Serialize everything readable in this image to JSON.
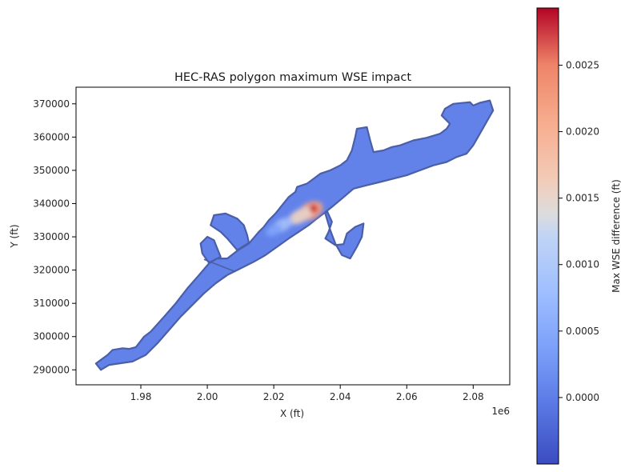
{
  "chart_data": {
    "type": "heatmap",
    "title": "HEC-RAS polygon maximum WSE impact",
    "xlabel": "X (ft)",
    "ylabel": "Y (ft)",
    "x_offset_label": "1e6",
    "xlim": [
      1.9605,
      2.091
    ],
    "ylim": [
      285500,
      375000
    ],
    "x_ticks": [
      1.98,
      2.0,
      2.02,
      2.04,
      2.06,
      2.08
    ],
    "x_tick_labels": [
      "1.98",
      "2.00",
      "2.02",
      "2.04",
      "2.06",
      "2.08"
    ],
    "y_ticks": [
      290000,
      300000,
      310000,
      320000,
      330000,
      340000,
      350000,
      360000,
      370000
    ],
    "y_tick_labels": [
      "290000",
      "300000",
      "310000",
      "320000",
      "330000",
      "340000",
      "350000",
      "360000",
      "370000"
    ],
    "colorbar": {
      "label": "Max WSE difference (ft)",
      "colormap": "coolwarm",
      "range": [
        -0.0005,
        0.00293
      ],
      "ticks": [
        0.0,
        0.0005,
        0.001,
        0.0015,
        0.002,
        0.0025
      ],
      "tick_labels": [
        "0.0000",
        "0.0005",
        "0.0010",
        "0.0015",
        "0.0020",
        "0.0025"
      ]
    },
    "domain_color": "#6282ea",
    "outline_color": "#4a5fa8",
    "boundary": [
      [
        1.9665,
        291900
      ],
      [
        1.97,
        294500
      ],
      [
        1.9715,
        296000
      ],
      [
        1.9745,
        296500
      ],
      [
        1.9765,
        296300
      ],
      [
        1.9785,
        296800
      ],
      [
        1.981,
        300000
      ],
      [
        1.983,
        301500
      ],
      [
        1.987,
        306000
      ],
      [
        1.9905,
        310000
      ],
      [
        1.994,
        314500
      ],
      [
        1.9975,
        318500
      ],
      [
        2.0005,
        322000
      ],
      [
        2.003,
        323500
      ],
      [
        2.006,
        323500
      ],
      [
        2.009,
        325800
      ],
      [
        2.0125,
        328000
      ],
      [
        2.0155,
        331500
      ],
      [
        2.017,
        333000
      ],
      [
        2.0185,
        335000
      ],
      [
        2.0205,
        337000
      ],
      [
        2.0225,
        339500
      ],
      [
        2.0245,
        342000
      ],
      [
        2.0265,
        343500
      ],
      [
        2.027,
        345000
      ],
      [
        2.03,
        346000
      ],
      [
        2.034,
        349000
      ],
      [
        2.037,
        350000
      ],
      [
        2.04,
        351500
      ],
      [
        2.042,
        353000
      ],
      [
        2.0435,
        356000
      ],
      [
        2.0445,
        360000
      ],
      [
        2.045,
        362500
      ],
      [
        2.048,
        363000
      ],
      [
        2.049,
        359000
      ],
      [
        2.05,
        355500
      ],
      [
        2.053,
        356000
      ],
      [
        2.0555,
        357000
      ],
      [
        2.058,
        357500
      ],
      [
        2.062,
        359000
      ],
      [
        2.066,
        359800
      ],
      [
        2.07,
        361000
      ],
      [
        2.072,
        362500
      ],
      [
        2.073,
        364000
      ],
      [
        2.0705,
        366500
      ],
      [
        2.0715,
        368500
      ],
      [
        2.074,
        370000
      ],
      [
        2.079,
        370500
      ],
      [
        2.08,
        369500
      ],
      [
        2.082,
        370300
      ],
      [
        2.085,
        371000
      ],
      [
        2.086,
        368000
      ],
      [
        2.084,
        364500
      ],
      [
        2.082,
        361000
      ],
      [
        2.08,
        357500
      ],
      [
        2.078,
        355000
      ],
      [
        2.075,
        354000
      ],
      [
        2.072,
        352500
      ],
      [
        2.068,
        351500
      ],
      [
        2.064,
        350000
      ],
      [
        2.06,
        348500
      ],
      [
        2.056,
        347500
      ],
      [
        2.052,
        346500
      ],
      [
        2.048,
        345500
      ],
      [
        2.044,
        344500
      ],
      [
        2.0405,
        341500
      ],
      [
        2.0375,
        339000
      ],
      [
        2.035,
        337000
      ],
      [
        2.033,
        335500
      ],
      [
        2.0305,
        333500
      ],
      [
        2.0275,
        331500
      ],
      [
        2.0245,
        329500
      ],
      [
        2.021,
        327000
      ],
      [
        2.0175,
        324500
      ],
      [
        2.014,
        322500
      ],
      [
        2.01,
        320500
      ],
      [
        2.006,
        318500
      ],
      [
        2.0025,
        316000
      ],
      [
        1.999,
        313000
      ],
      [
        1.996,
        310000
      ],
      [
        1.992,
        306000
      ],
      [
        1.9885,
        302000
      ],
      [
        1.985,
        298000
      ],
      [
        1.9815,
        294500
      ],
      [
        1.9775,
        292500
      ],
      [
        1.974,
        292000
      ],
      [
        1.9705,
        291500
      ],
      [
        1.968,
        290000
      ]
    ],
    "tributaries": [
      [
        [
          2.009,
          326000
        ],
        [
          2.006,
          329500
        ],
        [
          2.004,
          331500
        ],
        [
          2.001,
          333500
        ],
        [
          2.002,
          336500
        ],
        [
          2.0055,
          337000
        ],
        [
          2.009,
          335500
        ],
        [
          2.011,
          333500
        ],
        [
          2.012,
          330500
        ],
        [
          2.0125,
          328200
        ]
      ],
      [
        [
          2.0005,
          322200
        ],
        [
          1.9985,
          325000
        ],
        [
          1.998,
          328000
        ],
        [
          2.0,
          330000
        ],
        [
          2.002,
          329000
        ],
        [
          2.003,
          326500
        ],
        [
          2.004,
          324000
        ]
      ],
      [
        [
          2.036,
          337800
        ],
        [
          2.0375,
          334500
        ],
        [
          2.0365,
          331500
        ],
        [
          2.0355,
          329500
        ],
        [
          2.0385,
          327500
        ],
        [
          2.041,
          327800
        ],
        [
          2.042,
          331000
        ],
        [
          2.0445,
          333000
        ],
        [
          2.047,
          334000
        ],
        [
          2.0465,
          330000
        ],
        [
          2.045,
          327000
        ],
        [
          2.043,
          323500
        ],
        [
          2.0405,
          324500
        ],
        [
          2.0385,
          328000
        ],
        [
          2.037,
          332000
        ],
        [
          2.0355,
          337000
        ]
      ]
    ],
    "hotspots": [
      {
        "x": 2.031,
        "y": 337800,
        "rx": 0.004,
        "ry": 2500,
        "value": 0.0022
      },
      {
        "x": 2.028,
        "y": 336300,
        "rx": 0.004,
        "ry": 2000,
        "value": 0.0016
      },
      {
        "x": 2.0225,
        "y": 333500,
        "rx": 0.0035,
        "ry": 1800,
        "value": 0.0008
      },
      {
        "x": 2.02,
        "y": 332000,
        "rx": 0.0025,
        "ry": 1500,
        "value": 0.0004
      },
      {
        "x": 2.032,
        "y": 338500,
        "rx": 0.0012,
        "ry": 1200,
        "value": 0.0028
      }
    ]
  }
}
